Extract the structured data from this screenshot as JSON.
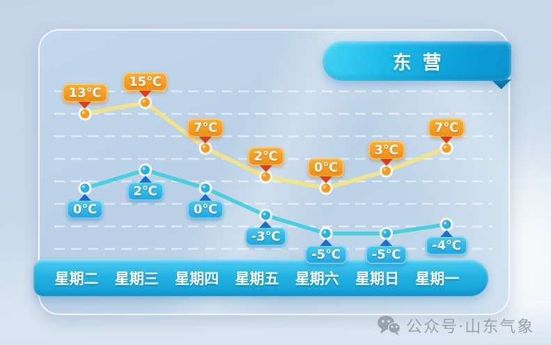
{
  "page": {
    "footer": {
      "text": "公众号·山东气象"
    }
  },
  "panel": {
    "title": "东营"
  },
  "chart_data": {
    "type": "line",
    "title": "东营",
    "categories": [
      "星期二",
      "星期三",
      "星期四",
      "星期五",
      "星期六",
      "星期日",
      "星期一"
    ],
    "unit": "℃",
    "series": [
      {
        "name": "high",
        "values": [
          13,
          15,
          7,
          2,
          0,
          3,
          7
        ],
        "labels": [
          "13℃",
          "15℃",
          "7℃",
          "2℃",
          "0℃",
          "3℃",
          "7℃"
        ],
        "line_color": "#f2e486",
        "marker_color": "#f59b1e",
        "label_bg_top": "#f8b13a",
        "label_bg_bottom": "#ee8c0f",
        "label_arrow": "#dc3f17",
        "label_position": "above"
      },
      {
        "name": "low",
        "values": [
          0,
          2,
          0,
          -3,
          -5,
          -5,
          -4
        ],
        "labels": [
          "0℃",
          "2℃",
          "0℃",
          "-3℃",
          "-5℃",
          "-5℃",
          "-4℃"
        ],
        "line_color": "#43cfdc",
        "marker_color": "#28b2e2",
        "label_bg_top": "#4ecbee",
        "label_bg_bottom": "#1ea3dd",
        "label_arrow": "#1a6fcc",
        "label_position": "below"
      }
    ],
    "ylim": [
      -7,
      17
    ],
    "grid": "horizontal-dashed",
    "legend": "none"
  },
  "colors": {
    "ribbon_blue": "#14aede",
    "day_bar_blue": "#1fb0e0",
    "panel_bg": "#bdd3e7",
    "page_bg": "#cdddee",
    "grid_line": "#ffffff",
    "footer_gray": "#99a3ad"
  }
}
